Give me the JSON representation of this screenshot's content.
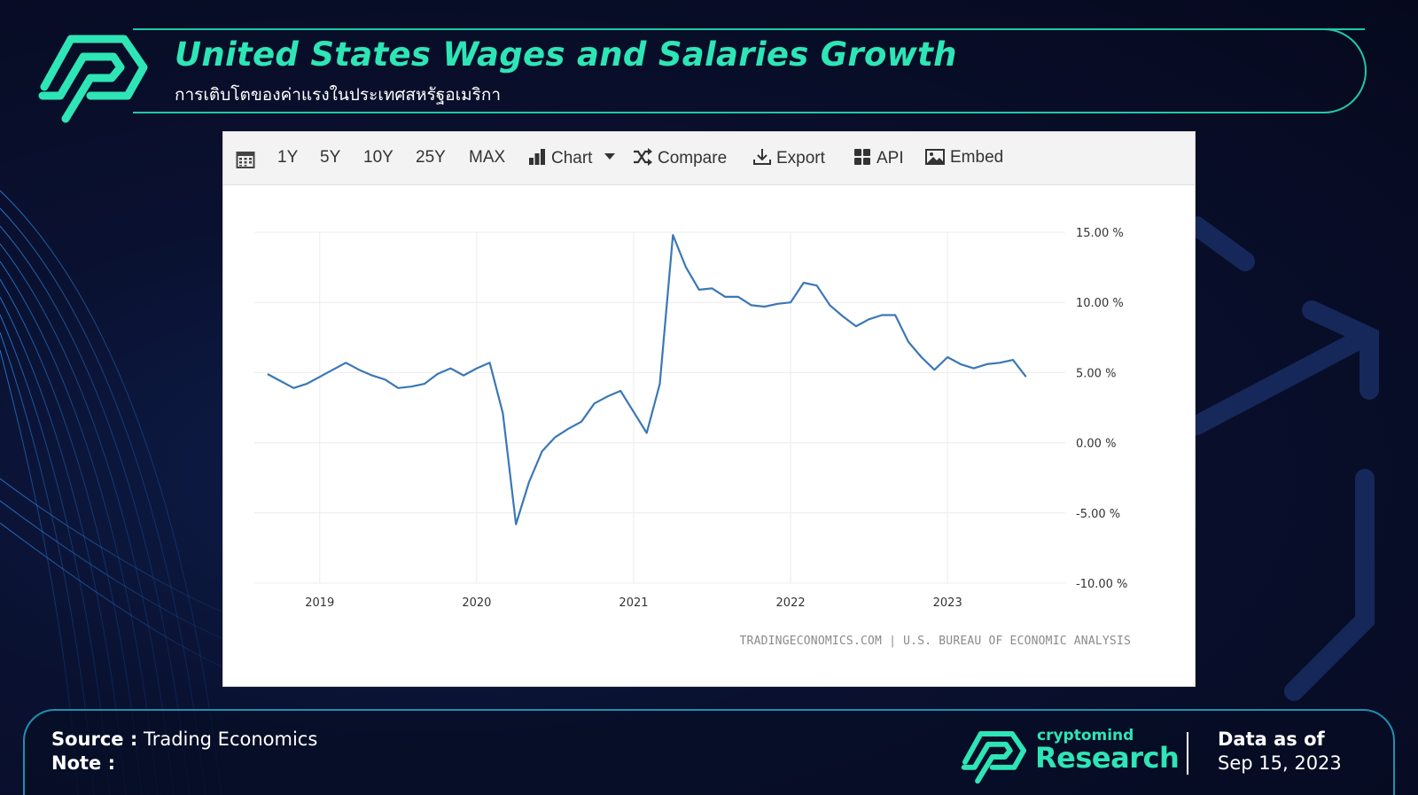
{
  "header": {
    "title": "United States Wages and Salaries Growth",
    "subtitle": "การเติบโตของค่าแรงในประเทศสหรัฐอเมริกา"
  },
  "toolbar": {
    "range_buttons": [
      "1Y",
      "5Y",
      "10Y",
      "25Y",
      "MAX"
    ],
    "chart_label": "Chart",
    "compare_label": "Compare",
    "export_label": "Export",
    "api_label": "API",
    "embed_label": "Embed"
  },
  "chart_data": {
    "type": "line",
    "series": [
      {
        "color": "#3b78b5",
        "x": [
          "2018-09",
          "2018-10",
          "2018-11",
          "2018-12",
          "2019-01",
          "2019-02",
          "2019-03",
          "2019-04",
          "2019-05",
          "2019-06",
          "2019-07",
          "2019-08",
          "2019-09",
          "2019-10",
          "2019-11",
          "2019-12",
          "2020-01",
          "2020-02",
          "2020-03",
          "2020-04",
          "2020-05",
          "2020-06",
          "2020-07",
          "2020-08",
          "2020-09",
          "2020-10",
          "2020-11",
          "2020-12",
          "2021-01",
          "2021-02",
          "2021-03",
          "2021-04",
          "2021-05",
          "2021-06",
          "2021-07",
          "2021-08",
          "2021-09",
          "2021-10",
          "2021-11",
          "2021-12",
          "2022-01",
          "2022-02",
          "2022-03",
          "2022-04",
          "2022-05",
          "2022-06",
          "2022-07",
          "2022-08",
          "2022-09",
          "2022-10",
          "2022-11",
          "2022-12",
          "2023-01",
          "2023-02",
          "2023-03",
          "2023-04",
          "2023-05",
          "2023-06",
          "2023-07"
        ],
        "y": [
          4.9,
          4.4,
          3.9,
          4.2,
          4.7,
          5.2,
          5.7,
          5.2,
          4.8,
          4.5,
          3.9,
          4.0,
          4.2,
          4.9,
          5.3,
          4.8,
          5.3,
          5.7,
          2.1,
          -5.8,
          -2.8,
          -0.6,
          0.4,
          1.0,
          1.5,
          2.8,
          3.3,
          3.7,
          2.2,
          0.7,
          4.2,
          14.8,
          12.5,
          10.9,
          11.0,
          10.4,
          10.4,
          9.8,
          9.7,
          9.9,
          10.0,
          11.4,
          11.2,
          9.8,
          9.0,
          8.3,
          8.8,
          9.1,
          9.1,
          7.2,
          6.1,
          5.2,
          6.1,
          5.6,
          5.3,
          5.6,
          5.7,
          5.9,
          4.7
        ]
      }
    ],
    "x_tick_labels": [
      "2019",
      "2020",
      "2021",
      "2022",
      "2023"
    ],
    "y_tick_labels": [
      "15.00 %",
      "10.00 %",
      "5.00 %",
      "0.00 %",
      "-5.00 %",
      "-10.00 %"
    ],
    "y_ticks": [
      15,
      10,
      5,
      0,
      -5,
      -10
    ],
    "ylim": [
      -10,
      15
    ],
    "xlim": [
      "2018-08",
      "2023-10"
    ],
    "grid": true,
    "legend": "none",
    "credit": "TRADINGECONOMICS.COM | U.S. BUREAU OF ECONOMIC ANALYSIS"
  },
  "footer": {
    "source_label": "Source :",
    "source_value": "Trading Economics",
    "note_label": "Note :",
    "brand_top": "cryptomind",
    "brand_main": "Research",
    "asof_label": "Data as of",
    "asof_date": "Sep 15, 2023"
  },
  "colors": {
    "accent": "#2ee5b6",
    "line": "#3b78b5",
    "footer_border": "#1f8fb0"
  },
  "icons": [
    "calendar-icon",
    "bar-chart-icon",
    "caret-down-icon",
    "shuffle-icon",
    "download-icon",
    "grid-icon",
    "image-icon"
  ]
}
